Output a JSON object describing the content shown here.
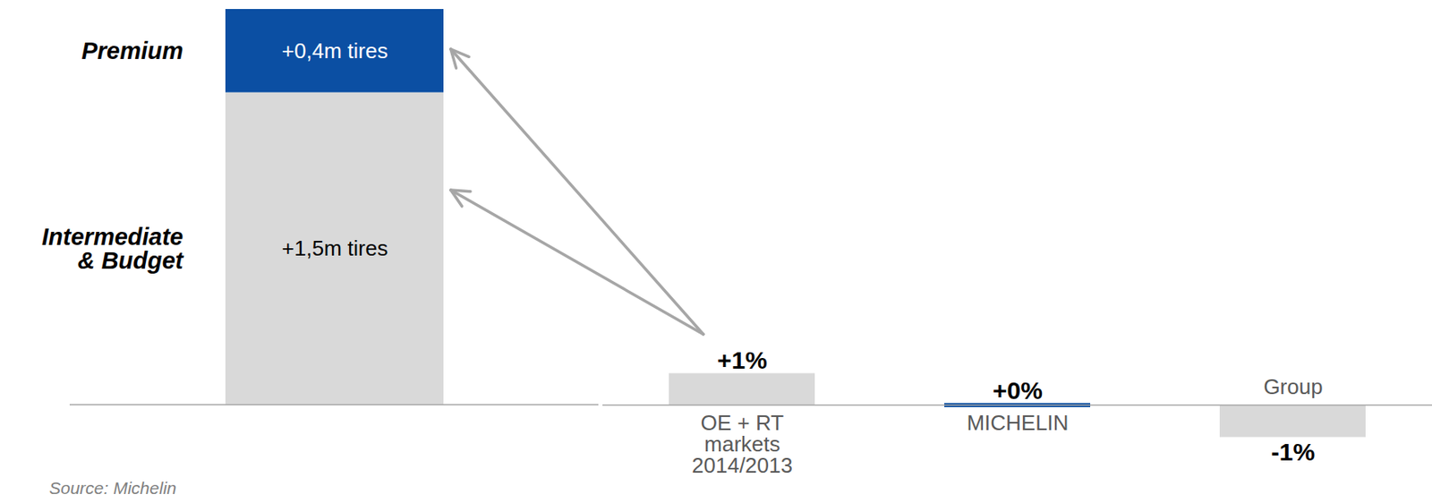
{
  "chart_data": [
    {
      "type": "bar",
      "stacked": true,
      "tick_labels": false,
      "data_labels": true,
      "categories": [
        null
      ],
      "series": [
        {
          "name": "Intermediate & Budget",
          "color": "#d9d9d9",
          "values": [
            1.5
          ],
          "value_labels": [
            "+1,5m tires"
          ]
        },
        {
          "name": "Premium",
          "color": "#0b4fa3",
          "values": [
            0.4
          ],
          "value_labels": [
            "+0,4m tires"
          ]
        }
      ],
      "caption": "Source: Michelin"
    },
    {
      "type": "bar",
      "tick_labels": false,
      "data_labels": true,
      "categories": [
        "OE + RT markets 2014/2013",
        "MICHELIN",
        "Group"
      ],
      "values": [
        1,
        0,
        -1
      ],
      "value_labels": [
        "+1%",
        "+0%",
        "-1%"
      ],
      "colors": [
        "#d9d9d9",
        "#0b4fa3",
        "#d9d9d9"
      ]
    }
  ]
}
